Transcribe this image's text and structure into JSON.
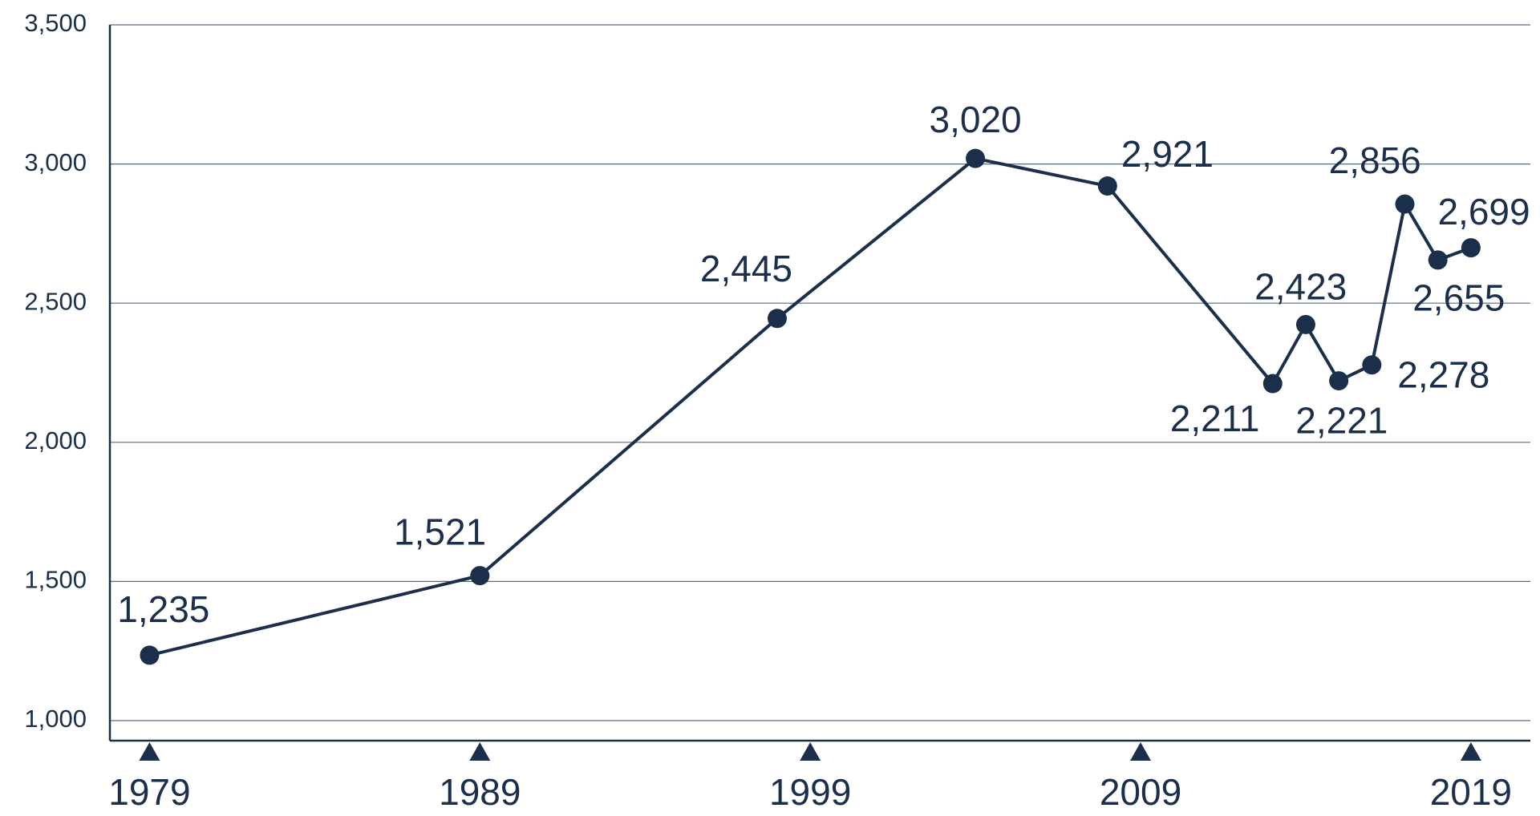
{
  "chart_data": {
    "type": "line",
    "x": [
      1979,
      1989,
      1998,
      2004,
      2008,
      2013,
      2014,
      2015,
      2016,
      2017,
      2018,
      2019
    ],
    "values": [
      1235,
      1521,
      2445,
      3020,
      2921,
      2211,
      2423,
      2221,
      2278,
      2856,
      2655,
      2699
    ],
    "value_labels": [
      "1,235",
      "1,521",
      "2,445",
      "3,020",
      "2,921",
      "2,211",
      "2,423",
      "2,221",
      "2,278",
      "2,856",
      "2,655",
      "2,699"
    ],
    "color": "#1b2f4b",
    "xlim": [
      1977.8,
      2020.8
    ],
    "xticks": [
      1979,
      1989,
      1999,
      2009,
      2019
    ],
    "ylim": [
      928,
      3500
    ],
    "yticks": [
      {
        "value": 1000,
        "label": "1,000"
      },
      {
        "value": 1500,
        "label": "1,500"
      },
      {
        "value": 2000,
        "label": "2,000"
      },
      {
        "value": 2500,
        "label": "2,500"
      },
      {
        "value": 3000,
        "label": "3,000"
      },
      {
        "value": 3500,
        "label": "3,500"
      }
    ],
    "grid": true
  }
}
